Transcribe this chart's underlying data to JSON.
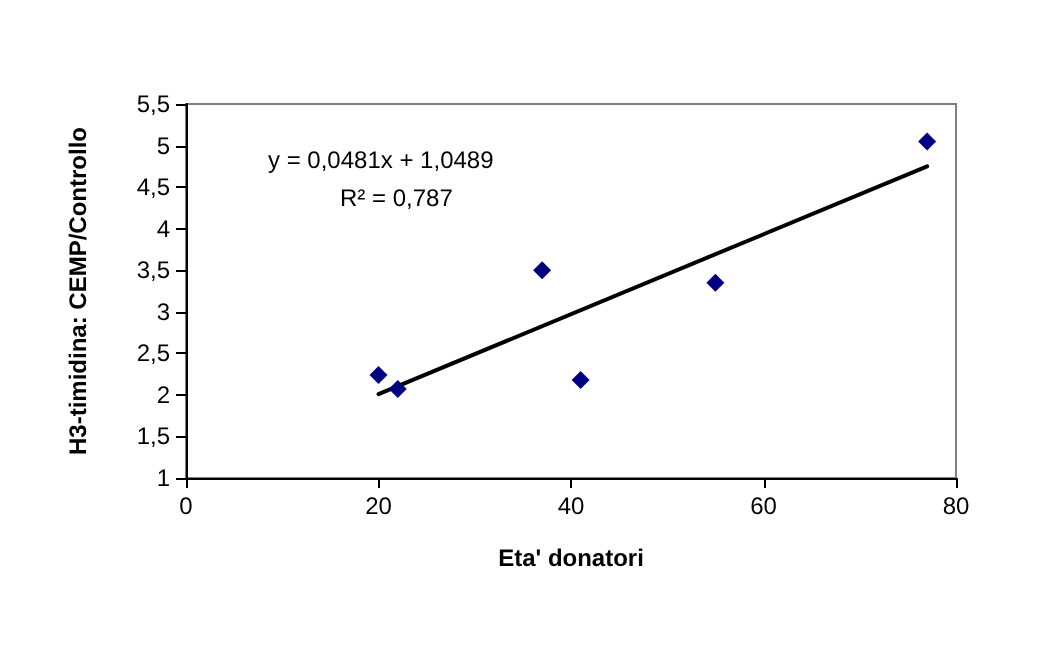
{
  "chart_data": {
    "type": "scatter",
    "xlabel": "Eta' donatori",
    "ylabel": "H3-timidina: CEMP/Controllo",
    "annotations": [
      "y = 0,0481x + 1,0489",
      "R² = 0,787"
    ],
    "series": [
      {
        "color": "#000080",
        "x": [
          20,
          22,
          37,
          41,
          55,
          77
        ],
        "values": [
          2.24,
          2.07,
          3.5,
          2.18,
          3.35,
          5.05
        ],
        "marker": "diamond"
      },
      {
        "type": "line",
        "color": "#000000",
        "x": [
          20,
          77
        ],
        "values": [
          2.01,
          4.75
        ],
        "marker": "none",
        "line_style": "solid"
      }
    ],
    "xlim": [
      0,
      80
    ],
    "xticks": [
      0,
      20,
      40,
      60,
      80
    ],
    "ylim": [
      1,
      5.5
    ],
    "yticks": [
      1,
      {
        "value": 1.5,
        "label": "1,5"
      },
      2,
      {
        "value": 2.5,
        "label": "2,5"
      },
      3,
      {
        "value": 3.5,
        "label": "3,5"
      },
      4,
      {
        "value": 4.5,
        "label": "4,5"
      },
      5,
      {
        "value": 5.5,
        "label": "5,5"
      }
    ],
    "grid": false
  }
}
